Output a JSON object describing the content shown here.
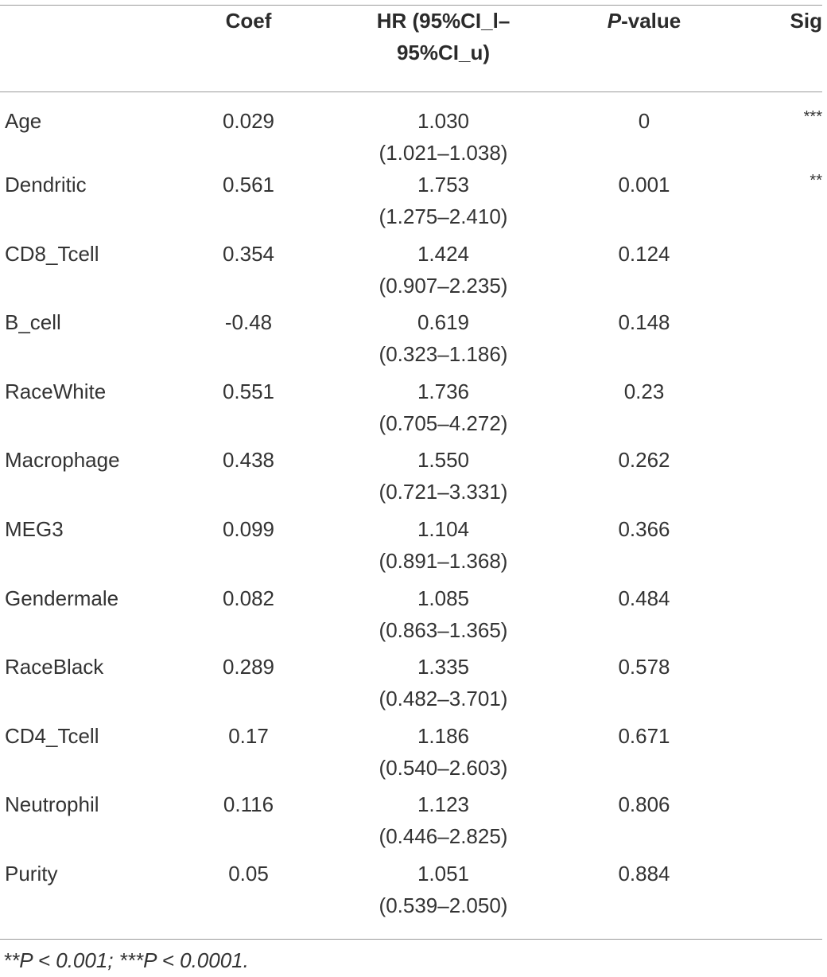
{
  "table": {
    "headers": {
      "variable": "",
      "coef": "Coef",
      "hr_line1": "HR (95%CI_l–",
      "hr_line2": "95%CI_u)",
      "p_italic": "P",
      "p_rest": "-value",
      "sig": "Sig"
    },
    "rows": [
      {
        "variable": "Age",
        "coef": "0.029",
        "hr": "1.030",
        "ci": "(1.021–1.038)",
        "p": "0",
        "sig": "***"
      },
      {
        "variable": "Dendritic",
        "coef": "0.561",
        "hr": "1.753",
        "ci": "(1.275–2.410)",
        "p": "0.001",
        "sig": "**"
      },
      {
        "variable": "CD8_Tcell",
        "coef": "0.354",
        "hr": "1.424",
        "ci": "(0.907–2.235)",
        "p": "0.124",
        "sig": ""
      },
      {
        "variable": "B_cell",
        "coef": "-0.48",
        "hr": "0.619",
        "ci": "(0.323–1.186)",
        "p": "0.148",
        "sig": ""
      },
      {
        "variable": "RaceWhite",
        "coef": "0.551",
        "hr": "1.736",
        "ci": "(0.705–4.272)",
        "p": "0.23",
        "sig": ""
      },
      {
        "variable": "Macrophage",
        "coef": "0.438",
        "hr": "1.550",
        "ci": "(0.721–3.331)",
        "p": "0.262",
        "sig": ""
      },
      {
        "variable": "MEG3",
        "coef": "0.099",
        "hr": "1.104",
        "ci": "(0.891–1.368)",
        "p": "0.366",
        "sig": ""
      },
      {
        "variable": "Gendermale",
        "coef": "0.082",
        "hr": "1.085",
        "ci": "(0.863–1.365)",
        "p": "0.484",
        "sig": ""
      },
      {
        "variable": "RaceBlack",
        "coef": "0.289",
        "hr": "1.335",
        "ci": "(0.482–3.701)",
        "p": "0.578",
        "sig": ""
      },
      {
        "variable": "CD4_Tcell",
        "coef": "0.17",
        "hr": "1.186",
        "ci": "(0.540–2.603)",
        "p": "0.671",
        "sig": ""
      },
      {
        "variable": "Neutrophil",
        "coef": "0.116",
        "hr": "1.123",
        "ci": "(0.446–2.825)",
        "p": "0.806",
        "sig": ""
      },
      {
        "variable": "Purity",
        "coef": "0.05",
        "hr": "1.051",
        "ci": "(0.539–2.050)",
        "p": "0.884",
        "sig": ""
      }
    ]
  },
  "footnote": "**P < 0.001; ***P < 0.0001."
}
